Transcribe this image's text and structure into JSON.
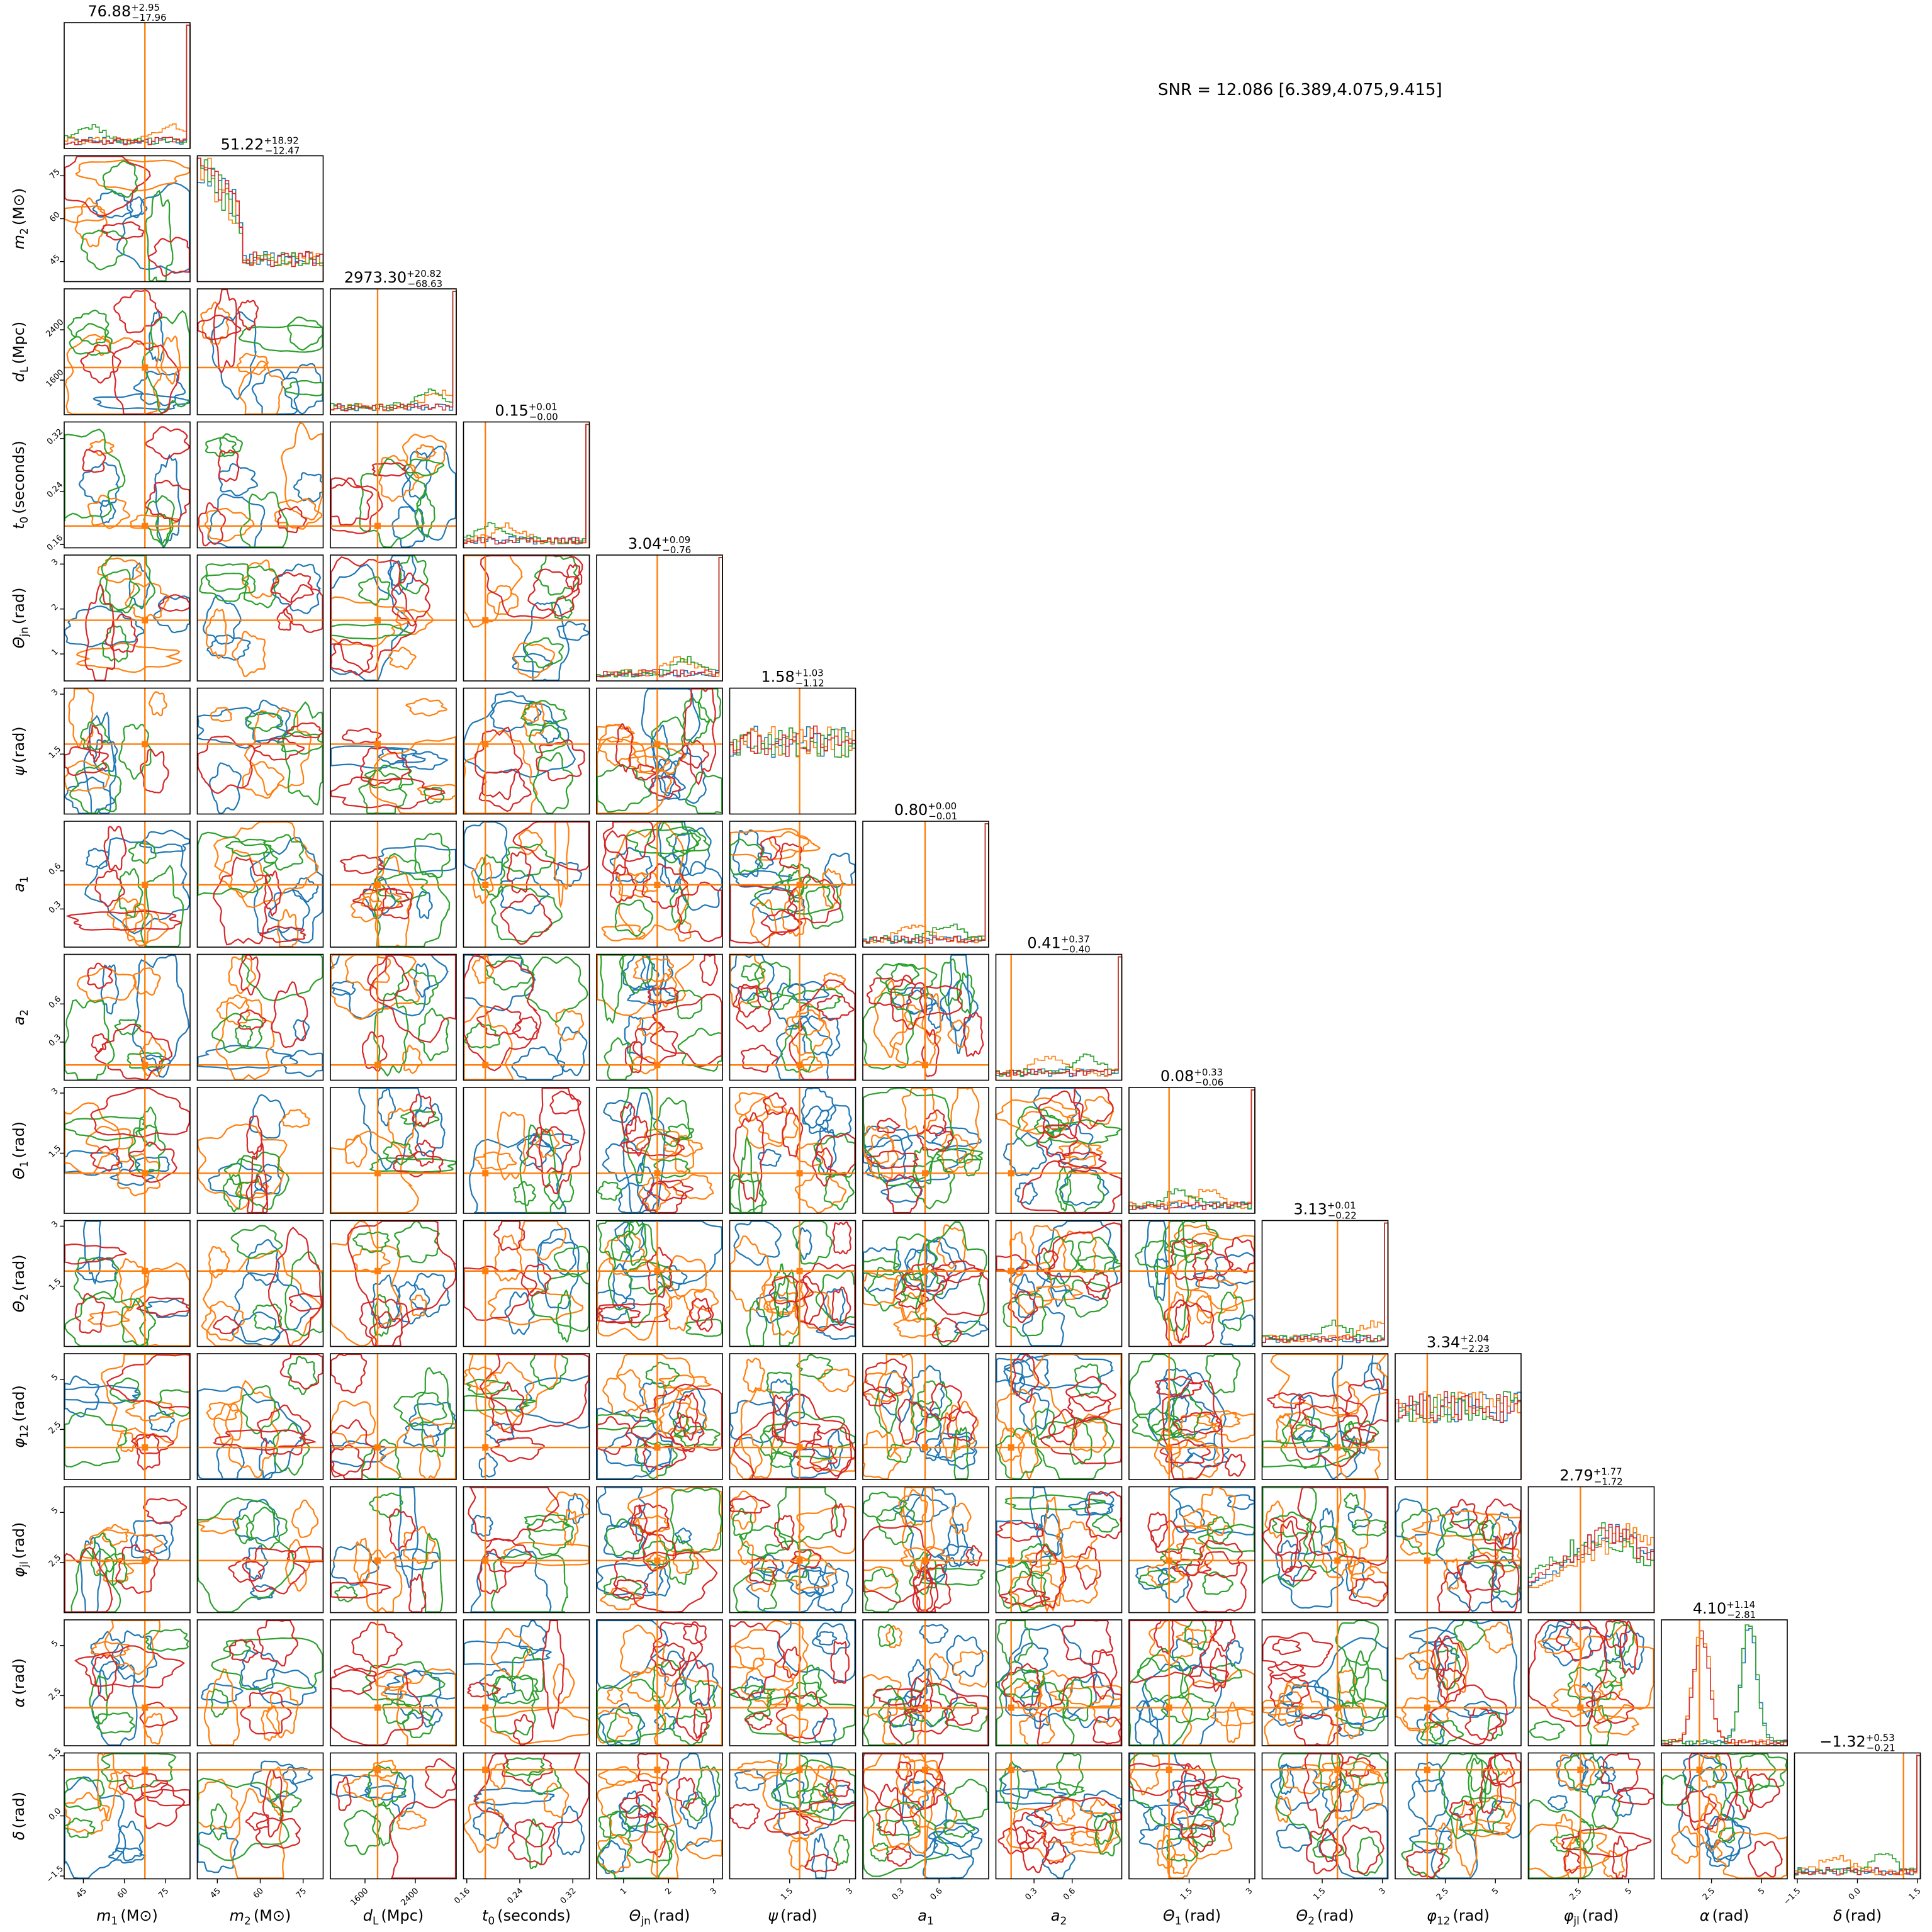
{
  "snr_text": "SNR = 12.086 [6.389,4.075,9.415]",
  "colors": {
    "blue": "#1f77b4",
    "orange": "#ff7f0e",
    "green": "#2ca02c",
    "red": "#d62728",
    "truth": "#ff7f0e"
  },
  "chart_data": {
    "type": "corner",
    "parameters": [
      {
        "label": "m_1 (M_⊙)",
        "symbol": "m",
        "sub": "1",
        "unit": "(M⊙)",
        "range": [
          38,
          84
        ],
        "truth": 67.5,
        "ticks": [
          45,
          60,
          75
        ],
        "title": {
          "median": "76.88",
          "plus": "+2.95",
          "minus": "−17.96"
        }
      },
      {
        "label": "m_2 (M_⊙)",
        "symbol": "m",
        "sub": "2",
        "unit": "(M⊙)",
        "range": [
          38,
          82
        ],
        "truth": null,
        "ticks": [
          45,
          60,
          75
        ],
        "title": {
          "median": "51.22",
          "plus": "+18.92",
          "minus": "−12.47"
        }
      },
      {
        "label": "d_L (Mpc)",
        "symbol": "d",
        "sub": "L",
        "unit": "(Mpc)",
        "range": [
          1050,
          3050
        ],
        "truth": 1800,
        "ticks": [
          1600,
          2400
        ],
        "title": {
          "median": "2973.30",
          "plus": "+20.82",
          "minus": "−68.63"
        }
      },
      {
        "label": "t_0 (seconds)",
        "symbol": "t",
        "sub": "0",
        "unit": "(seconds)",
        "range": [
          0.155,
          0.345
        ],
        "truth": 0.188,
        "ticks": [
          0.16,
          0.24,
          0.32
        ],
        "title": {
          "median": "0.15",
          "plus": "+0.01",
          "minus": "−0.00"
        }
      },
      {
        "label": "Θ_jn (rad)",
        "symbol": "Θ",
        "sub": "jn",
        "unit": "(rad)",
        "range": [
          0.4,
          3.2
        ],
        "truth": 1.75,
        "ticks": [
          1,
          2,
          3
        ],
        "title": {
          "median": "3.04",
          "plus": "+0.09",
          "minus": "−0.76"
        }
      },
      {
        "label": "ψ (rad)",
        "symbol": "ψ",
        "sub": "",
        "unit": "(rad)",
        "range": [
          0.0,
          3.15
        ],
        "truth": 1.75,
        "ticks": [
          1.5,
          3.0
        ],
        "title": {
          "median": "1.58",
          "plus": "+1.03",
          "minus": "−1.12"
        }
      },
      {
        "label": "a_1",
        "symbol": "a",
        "sub": "1",
        "unit": "",
        "range": [
          0.0,
          0.99
        ],
        "truth": 0.49,
        "ticks": [
          0.3,
          0.6
        ],
        "title": {
          "median": "0.80",
          "plus": "+0.00",
          "minus": "−0.01"
        }
      },
      {
        "label": "a_2",
        "symbol": "a",
        "sub": "2",
        "unit": "",
        "range": [
          0.0,
          0.99
        ],
        "truth": 0.12,
        "ticks": [
          0.3,
          0.6
        ],
        "title": {
          "median": "0.41",
          "plus": "+0.37",
          "minus": "−0.40"
        }
      },
      {
        "label": "Θ_1 (rad)",
        "symbol": "Θ",
        "sub": "1",
        "unit": "(rad)",
        "range": [
          0.0,
          3.14
        ],
        "truth": 1.0,
        "ticks": [
          1.5,
          3.0
        ],
        "title": {
          "median": "0.08",
          "plus": "+0.33",
          "minus": "−0.06"
        }
      },
      {
        "label": "Θ_2 (rad)",
        "symbol": "Θ",
        "sub": "2",
        "unit": "(rad)",
        "range": [
          0.0,
          3.14
        ],
        "truth": 1.88,
        "ticks": [
          1.5,
          3.0
        ],
        "title": {
          "median": "3.13",
          "plus": "+0.01",
          "minus": "−0.22"
        }
      },
      {
        "label": "φ_12 (rad)",
        "symbol": "φ",
        "sub": "12",
        "unit": "(rad)",
        "range": [
          0.0,
          6.28
        ],
        "truth": 1.6,
        "ticks": [
          2.5,
          5.0
        ],
        "title": {
          "median": "3.34",
          "plus": "+2.04",
          "minus": "−2.23"
        }
      },
      {
        "label": "φ_jl (rad)",
        "symbol": "φ",
        "sub": "jl",
        "unit": "(rad)",
        "range": [
          0.0,
          6.28
        ],
        "truth": 2.6,
        "ticks": [
          2.5,
          5.0
        ],
        "title": {
          "median": "2.79",
          "plus": "+1.77",
          "minus": "−1.72"
        }
      },
      {
        "label": "α (rad)",
        "symbol": "α",
        "sub": "",
        "unit": "(rad)",
        "range": [
          0.0,
          6.28
        ],
        "truth": 1.9,
        "ticks": [
          2.5,
          5.0
        ],
        "title": {
          "median": "4.10",
          "plus": "+1.14",
          "minus": "−2.81"
        }
      },
      {
        "label": "δ (rad)",
        "symbol": "δ",
        "sub": "",
        "unit": "(rad)",
        "range": [
          -1.57,
          1.57
        ],
        "truth": 1.15,
        "ticks": [
          -1.5,
          0.0,
          1.5
        ],
        "title": {
          "median": "−1.32",
          "plus": "+0.53",
          "minus": "−0.21"
        }
      }
    ],
    "series_colors": [
      "#1f77b4",
      "#ff7f0e",
      "#2ca02c",
      "#d62728"
    ]
  }
}
